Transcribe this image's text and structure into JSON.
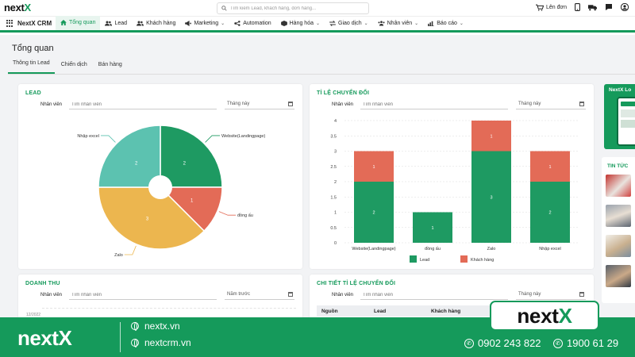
{
  "topbar": {
    "logo_main": "next",
    "logo_accent": "X",
    "search_placeholder": "Tìm kiếm Lead, khách hàng, đơn hàng...",
    "order_label": "Lên đơn"
  },
  "nav": {
    "brand": "NextX CRM",
    "items": [
      {
        "label": "Tổng quan",
        "icon": "home-icon",
        "dropdown": false
      },
      {
        "label": "Lead",
        "icon": "users-icon",
        "dropdown": false
      },
      {
        "label": "Khách hàng",
        "icon": "users-icon",
        "dropdown": false
      },
      {
        "label": "Marketing",
        "icon": "megaphone-icon",
        "dropdown": true
      },
      {
        "label": "Automation",
        "icon": "automation-icon",
        "dropdown": false
      },
      {
        "label": "Hàng hóa",
        "icon": "box-icon",
        "dropdown": true
      },
      {
        "label": "Giao dịch",
        "icon": "exchange-icon",
        "dropdown": true
      },
      {
        "label": "Nhân viên",
        "icon": "staff-icon",
        "dropdown": true
      },
      {
        "label": "Báo cáo",
        "icon": "chart-icon",
        "dropdown": true
      }
    ]
  },
  "page": {
    "title": "Tổng quan",
    "tabs": [
      "Thông tin Lead",
      "Chiến dịch",
      "Bán hàng"
    ]
  },
  "filters": {
    "employee_label": "Nhân viên",
    "employee_placeholder": "Tìm nhân viên",
    "this_month": "Tháng này",
    "last_year": "Năm trước"
  },
  "cards": {
    "lead_title": "LEAD",
    "conversion_title": "TỈ LỆ CHUYỂN ĐỔI",
    "revenue_title": "DOANH THU",
    "conversion_detail_title": "CHI TIẾT TỈ LỆ CHUYỂN ĐỔI",
    "revenue_axis_partial": "12/2022"
  },
  "table": {
    "headers": [
      "Nguồn",
      "Lead",
      "Khách hàng"
    ]
  },
  "chart_data": [
    {
      "type": "pie",
      "title": "LEAD",
      "labels": [
        "Website(Landingpage)",
        "đồng ấu",
        "Zalo",
        "Nhập excel"
      ],
      "values": [
        2,
        1,
        3,
        2
      ],
      "colors": [
        "#1e9a62",
        "#e36b57",
        "#ecb64f",
        "#5cc2b0"
      ],
      "donut_hole": true
    },
    {
      "type": "bar",
      "stacked": true,
      "title": "TỈ LỆ CHUYỂN ĐỔI",
      "categories": [
        "Website(Landingpage)",
        "đồng ấu",
        "Zalo",
        "Nhập excel"
      ],
      "series": [
        {
          "name": "Lead",
          "values": [
            2,
            1,
            3,
            2
          ],
          "color": "#1e9a62"
        },
        {
          "name": "Khách hàng",
          "values": [
            1,
            0,
            1,
            1
          ],
          "color": "#e36b57"
        }
      ],
      "y_ticks": [
        "0",
        "0.5",
        "1",
        "1.5",
        "2",
        "2.5",
        "3",
        "3.5",
        "4"
      ],
      "ylim": [
        0,
        4
      ],
      "legend": "bottom"
    }
  ],
  "right_column": {
    "promo_title": "NextX Lo",
    "news_title": "TIN TỨC"
  },
  "banner": {
    "logo_main": "next",
    "logo_accent": "X",
    "site1": "nextx.vn",
    "site2": "nextcrm.vn",
    "phone1": "0902 243 822",
    "phone2": "1900 61 29"
  }
}
